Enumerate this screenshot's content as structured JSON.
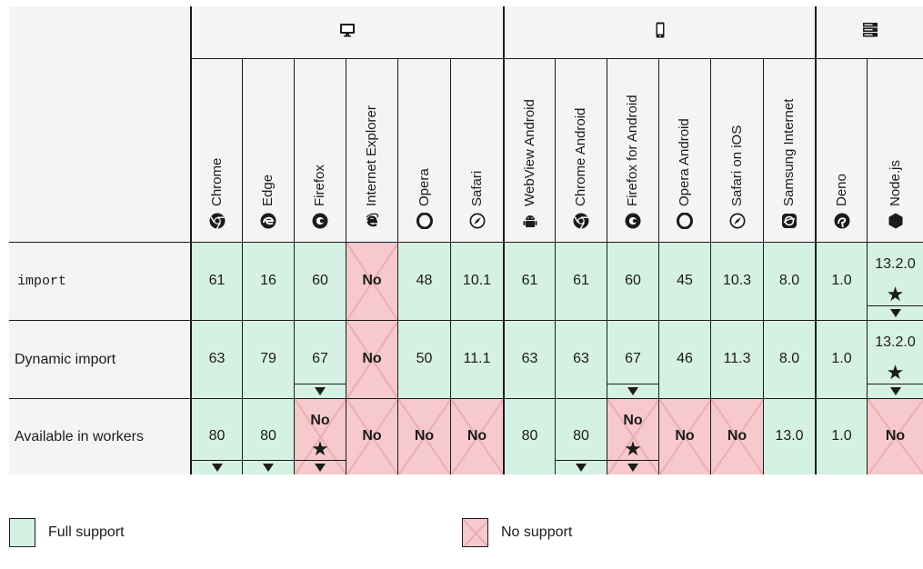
{
  "platforms": [
    {
      "name": "desktop",
      "icon": "desktop-icon"
    },
    {
      "name": "mobile",
      "icon": "mobile-icon"
    },
    {
      "name": "server",
      "icon": "server-icon"
    }
  ],
  "browsers": [
    {
      "name": "Chrome",
      "icon": "chrome-icon"
    },
    {
      "name": "Edge",
      "icon": "edge-icon"
    },
    {
      "name": "Firefox",
      "icon": "firefox-icon"
    },
    {
      "name": "Internet Explorer",
      "icon": "ie-icon"
    },
    {
      "name": "Opera",
      "icon": "opera-icon"
    },
    {
      "name": "Safari",
      "icon": "safari-icon"
    },
    {
      "name": "WebView Android",
      "icon": "android-icon"
    },
    {
      "name": "Chrome Android",
      "icon": "chrome-icon"
    },
    {
      "name": "Firefox for Android",
      "icon": "firefox-icon"
    },
    {
      "name": "Opera Android",
      "icon": "opera-icon"
    },
    {
      "name": "Safari on iOS",
      "icon": "safari-icon"
    },
    {
      "name": "Samsung Internet",
      "icon": "samsung-icon"
    },
    {
      "name": "Deno",
      "icon": "deno-icon"
    },
    {
      "name": "Node.js",
      "icon": "nodejs-icon"
    }
  ],
  "features": [
    {
      "name": "import",
      "code": true,
      "support": [
        {
          "v": "61",
          "s": "yes"
        },
        {
          "v": "16",
          "s": "yes"
        },
        {
          "v": "60",
          "s": "yes"
        },
        {
          "v": "No",
          "s": "no"
        },
        {
          "v": "48",
          "s": "yes"
        },
        {
          "v": "10.1",
          "s": "yes"
        },
        {
          "v": "61",
          "s": "yes"
        },
        {
          "v": "61",
          "s": "yes"
        },
        {
          "v": "60",
          "s": "yes"
        },
        {
          "v": "45",
          "s": "yes"
        },
        {
          "v": "10.3",
          "s": "yes"
        },
        {
          "v": "8.0",
          "s": "yes"
        },
        {
          "v": "1.0",
          "s": "yes"
        },
        {
          "v": "13.2.0",
          "s": "yes",
          "star": true,
          "arrow": true
        }
      ]
    },
    {
      "name": "Dynamic import",
      "code": false,
      "support": [
        {
          "v": "63",
          "s": "yes"
        },
        {
          "v": "79",
          "s": "yes"
        },
        {
          "v": "67",
          "s": "yes",
          "arrow": true
        },
        {
          "v": "No",
          "s": "no"
        },
        {
          "v": "50",
          "s": "yes"
        },
        {
          "v": "11.1",
          "s": "yes"
        },
        {
          "v": "63",
          "s": "yes"
        },
        {
          "v": "63",
          "s": "yes"
        },
        {
          "v": "67",
          "s": "yes",
          "arrow": true
        },
        {
          "v": "46",
          "s": "yes"
        },
        {
          "v": "11.3",
          "s": "yes"
        },
        {
          "v": "8.0",
          "s": "yes"
        },
        {
          "v": "1.0",
          "s": "yes"
        },
        {
          "v": "13.2.0",
          "s": "yes",
          "star": true,
          "arrow": true
        }
      ]
    },
    {
      "name": "Available in workers",
      "code": false,
      "support": [
        {
          "v": "80",
          "s": "yes",
          "arrow": true
        },
        {
          "v": "80",
          "s": "yes",
          "arrow": true
        },
        {
          "v": "No",
          "s": "no",
          "star": true,
          "arrow": true
        },
        {
          "v": "No",
          "s": "no"
        },
        {
          "v": "No",
          "s": "no"
        },
        {
          "v": "No",
          "s": "no"
        },
        {
          "v": "80",
          "s": "yes"
        },
        {
          "v": "80",
          "s": "yes",
          "arrow": true
        },
        {
          "v": "No",
          "s": "no",
          "star": true,
          "arrow": true
        },
        {
          "v": "No",
          "s": "no"
        },
        {
          "v": "No",
          "s": "no"
        },
        {
          "v": "13.0",
          "s": "yes"
        },
        {
          "v": "1.0",
          "s": "yes"
        },
        {
          "v": "No",
          "s": "no"
        }
      ]
    }
  ],
  "legend": {
    "full_support": "Full support",
    "no_support": "No support"
  },
  "colors": {
    "yes": "#d5f1e3",
    "no": "#f6c9cc",
    "line": "#1b1b1b",
    "header": "#f4f4f4"
  }
}
